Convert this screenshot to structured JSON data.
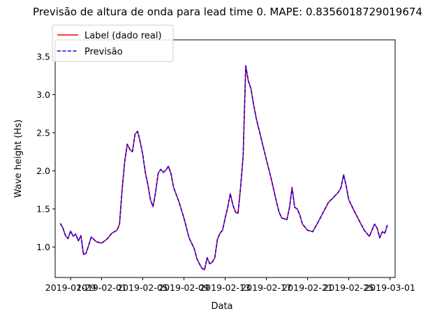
{
  "chart_data": {
    "type": "line",
    "title": "Previsão de altura de onda para lead time 0. MAPE: 0.8356018729019674",
    "xlabel": "Data",
    "ylabel": "Wave height (Hs)",
    "xlim": [
      "2019-01-27T12:00",
      "2019-03-01T12:00"
    ],
    "ylim": [
      0.6,
      3.72
    ],
    "x_ticks": [
      "2019-01-29",
      "2019-02-01",
      "2019-02-05",
      "2019-02-09",
      "2019-02-13",
      "2019-02-17",
      "2019-02-21",
      "2019-02-25",
      "2019-03-01"
    ],
    "y_ticks": [
      "1.0",
      "1.5",
      "2.0",
      "2.5",
      "3.0",
      "3.5"
    ],
    "legend_position": "top-left",
    "grid": false,
    "series": [
      {
        "name": "Label (dado real)",
        "color": "#ff0000",
        "style": "solid",
        "points": [
          [
            "2019-01-28T00:00",
            1.31
          ],
          [
            "2019-01-28T06:00",
            1.25
          ],
          [
            "2019-01-28T12:00",
            1.15
          ],
          [
            "2019-01-28T18:00",
            1.11
          ],
          [
            "2019-01-29T00:00",
            1.21
          ],
          [
            "2019-01-29T06:00",
            1.14
          ],
          [
            "2019-01-29T12:00",
            1.17
          ],
          [
            "2019-01-29T18:00",
            1.08
          ],
          [
            "2019-01-30T00:00",
            1.15
          ],
          [
            "2019-01-30T06:00",
            0.9
          ],
          [
            "2019-01-30T12:00",
            0.92
          ],
          [
            "2019-01-30T18:00",
            1.02
          ],
          [
            "2019-01-31T00:00",
            1.13
          ],
          [
            "2019-01-31T12:00",
            1.07
          ],
          [
            "2019-02-01T00:00",
            1.05
          ],
          [
            "2019-02-01T12:00",
            1.1
          ],
          [
            "2019-02-02T00:00",
            1.18
          ],
          [
            "2019-02-02T12:00",
            1.22
          ],
          [
            "2019-02-02T18:00",
            1.3
          ],
          [
            "2019-02-03T00:00",
            1.75
          ],
          [
            "2019-02-03T06:00",
            2.12
          ],
          [
            "2019-02-03T12:00",
            2.35
          ],
          [
            "2019-02-03T18:00",
            2.28
          ],
          [
            "2019-02-04T00:00",
            2.25
          ],
          [
            "2019-02-04T06:00",
            2.48
          ],
          [
            "2019-02-04T12:00",
            2.52
          ],
          [
            "2019-02-04T18:00",
            2.38
          ],
          [
            "2019-02-05T00:00",
            2.22
          ],
          [
            "2019-02-05T06:00",
            1.98
          ],
          [
            "2019-02-05T12:00",
            1.82
          ],
          [
            "2019-02-05T18:00",
            1.62
          ],
          [
            "2019-02-06T00:00",
            1.53
          ],
          [
            "2019-02-06T06:00",
            1.72
          ],
          [
            "2019-02-06T12:00",
            1.97
          ],
          [
            "2019-02-06T18:00",
            2.02
          ],
          [
            "2019-02-07T00:00",
            1.98
          ],
          [
            "2019-02-07T06:00",
            2.01
          ],
          [
            "2019-02-07T12:00",
            2.06
          ],
          [
            "2019-02-07T18:00",
            1.96
          ],
          [
            "2019-02-08T00:00",
            1.78
          ],
          [
            "2019-02-08T12:00",
            1.6
          ],
          [
            "2019-02-09T00:00",
            1.38
          ],
          [
            "2019-02-09T12:00",
            1.12
          ],
          [
            "2019-02-10T00:00",
            0.98
          ],
          [
            "2019-02-10T06:00",
            0.85
          ],
          [
            "2019-02-10T12:00",
            0.78
          ],
          [
            "2019-02-10T18:00",
            0.72
          ],
          [
            "2019-02-11T00:00",
            0.7
          ],
          [
            "2019-02-11T06:00",
            0.86
          ],
          [
            "2019-02-11T12:00",
            0.78
          ],
          [
            "2019-02-11T18:00",
            0.8
          ],
          [
            "2019-02-12T00:00",
            0.86
          ],
          [
            "2019-02-12T06:00",
            1.1
          ],
          [
            "2019-02-12T12:00",
            1.18
          ],
          [
            "2019-02-12T18:00",
            1.22
          ],
          [
            "2019-02-13T00:00",
            1.38
          ],
          [
            "2019-02-13T06:00",
            1.52
          ],
          [
            "2019-02-13T12:00",
            1.7
          ],
          [
            "2019-02-13T18:00",
            1.55
          ],
          [
            "2019-02-14T00:00",
            1.46
          ],
          [
            "2019-02-14T06:00",
            1.44
          ],
          [
            "2019-02-14T12:00",
            1.78
          ],
          [
            "2019-02-14T18:00",
            2.2
          ],
          [
            "2019-02-15T00:00",
            3.38
          ],
          [
            "2019-02-15T06:00",
            3.18
          ],
          [
            "2019-02-15T12:00",
            3.08
          ],
          [
            "2019-02-15T18:00",
            2.88
          ],
          [
            "2019-02-16T00:00",
            2.7
          ],
          [
            "2019-02-16T12:00",
            2.42
          ],
          [
            "2019-02-17T00:00",
            2.15
          ],
          [
            "2019-02-17T12:00",
            1.88
          ],
          [
            "2019-02-18T00:00",
            1.58
          ],
          [
            "2019-02-18T06:00",
            1.45
          ],
          [
            "2019-02-18T12:00",
            1.38
          ],
          [
            "2019-02-19T00:00",
            1.36
          ],
          [
            "2019-02-19T06:00",
            1.52
          ],
          [
            "2019-02-19T12:00",
            1.78
          ],
          [
            "2019-02-19T18:00",
            1.52
          ],
          [
            "2019-02-20T00:00",
            1.5
          ],
          [
            "2019-02-20T06:00",
            1.42
          ],
          [
            "2019-02-20T12:00",
            1.3
          ],
          [
            "2019-02-21T00:00",
            1.22
          ],
          [
            "2019-02-21T12:00",
            1.2
          ],
          [
            "2019-02-22T00:00",
            1.32
          ],
          [
            "2019-02-22T12:00",
            1.45
          ],
          [
            "2019-02-23T00:00",
            1.58
          ],
          [
            "2019-02-23T12:00",
            1.65
          ],
          [
            "2019-02-24T00:00",
            1.72
          ],
          [
            "2019-02-24T06:00",
            1.78
          ],
          [
            "2019-02-24T12:00",
            1.95
          ],
          [
            "2019-02-24T18:00",
            1.8
          ],
          [
            "2019-02-25T00:00",
            1.62
          ],
          [
            "2019-02-25T12:00",
            1.48
          ],
          [
            "2019-02-26T00:00",
            1.35
          ],
          [
            "2019-02-26T12:00",
            1.22
          ],
          [
            "2019-02-27T00:00",
            1.14
          ],
          [
            "2019-02-27T12:00",
            1.3
          ],
          [
            "2019-02-27T18:00",
            1.25
          ],
          [
            "2019-02-28T00:00",
            1.12
          ],
          [
            "2019-02-28T06:00",
            1.2
          ],
          [
            "2019-02-28T12:00",
            1.18
          ],
          [
            "2019-02-28T18:00",
            1.29
          ]
        ]
      },
      {
        "name": "Previsão",
        "color": "#0000ff",
        "style": "dashed",
        "points": []
      }
    ]
  }
}
